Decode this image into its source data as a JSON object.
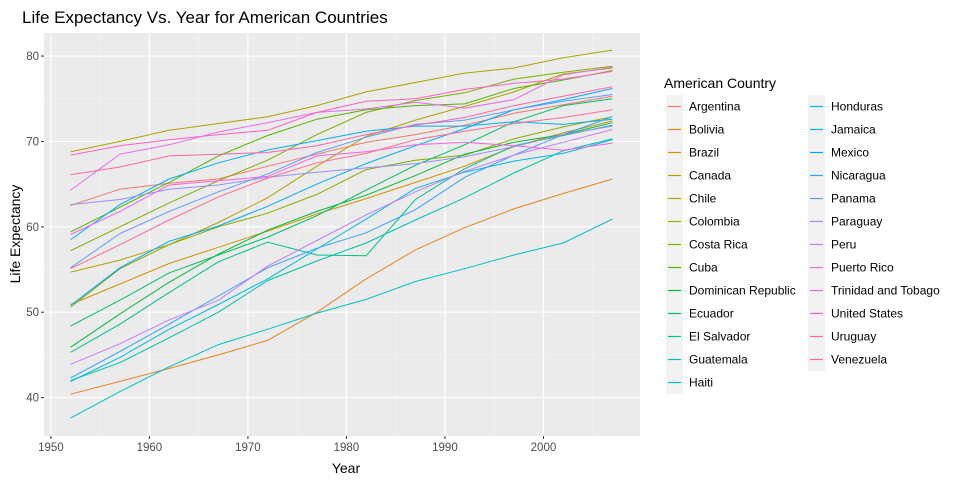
{
  "chart_data": {
    "type": "line",
    "title": "Life Expectancy Vs. Year for American Countries",
    "xlabel": "Year",
    "ylabel": "Life Expectancy",
    "xlim": [
      1949.3,
      2009.8
    ],
    "ylim": [
      35.5,
      82.7
    ],
    "xticks": [
      1950,
      1960,
      1970,
      1980,
      1990,
      2000
    ],
    "yticks": [
      40,
      50,
      60,
      70,
      80
    ],
    "grid": true,
    "legend": {
      "title": "American Country",
      "placement": "right"
    },
    "x": [
      1952,
      1957,
      1962,
      1967,
      1972,
      1977,
      1982,
      1987,
      1992,
      1997,
      2002,
      2007
    ],
    "series": [
      {
        "name": "Argentina",
        "color": "#F8766D",
        "values": [
          62.5,
          64.4,
          65.1,
          65.6,
          67.1,
          68.5,
          69.9,
          70.8,
          71.9,
          73.3,
          74.3,
          75.3
        ]
      },
      {
        "name": "Bolivia",
        "color": "#E7851E",
        "values": [
          40.4,
          41.9,
          43.4,
          45.0,
          46.7,
          50.0,
          53.9,
          57.3,
          59.9,
          62.1,
          63.9,
          65.6
        ]
      },
      {
        "name": "Brazil",
        "color": "#D09400",
        "values": [
          50.9,
          53.3,
          55.7,
          57.6,
          59.5,
          61.5,
          63.3,
          65.2,
          67.1,
          69.4,
          71.0,
          72.4
        ]
      },
      {
        "name": "Canada",
        "color": "#B2A100",
        "values": [
          68.8,
          70.0,
          71.3,
          72.1,
          72.9,
          74.2,
          75.8,
          76.9,
          78.0,
          78.6,
          79.8,
          80.7
        ]
      },
      {
        "name": "Chile",
        "color": "#B2A100",
        "values": [
          54.7,
          56.1,
          57.9,
          60.5,
          63.4,
          67.1,
          70.6,
          72.5,
          74.1,
          75.8,
          77.9,
          78.6
        ]
      },
      {
        "name": "Colombia",
        "color": "#8AAB00",
        "values": [
          50.6,
          55.1,
          57.9,
          60.0,
          61.6,
          63.8,
          66.7,
          67.8,
          68.4,
          70.3,
          71.7,
          72.9
        ]
      },
      {
        "name": "Costa Rica",
        "color": "#7CAE00",
        "values": [
          57.2,
          60.0,
          62.8,
          65.4,
          67.8,
          70.8,
          73.4,
          74.8,
          75.7,
          77.3,
          78.1,
          78.8
        ]
      },
      {
        "name": "Cuba",
        "color": "#53B400",
        "values": [
          59.4,
          62.3,
          65.2,
          68.3,
          70.7,
          72.6,
          73.7,
          74.2,
          74.4,
          76.2,
          77.2,
          78.3
        ]
      },
      {
        "name": "Dominican Republic",
        "color": "#00BA38",
        "values": [
          45.9,
          49.8,
          53.5,
          56.8,
          59.6,
          61.8,
          63.7,
          66.0,
          68.5,
          69.9,
          70.8,
          72.2
        ]
      },
      {
        "name": "Ecuador",
        "color": "#00BE67",
        "values": [
          48.4,
          51.4,
          54.6,
          56.7,
          58.8,
          61.3,
          64.3,
          67.2,
          69.6,
          72.3,
          74.2,
          75.0
        ]
      },
      {
        "name": "El Salvador",
        "color": "#00C08B",
        "values": [
          45.3,
          48.6,
          52.3,
          55.9,
          58.2,
          56.7,
          56.6,
          63.2,
          66.8,
          69.5,
          70.7,
          71.9
        ]
      },
      {
        "name": "Guatemala",
        "color": "#00C1A9",
        "values": [
          42.0,
          44.1,
          47.0,
          50.0,
          53.7,
          56.0,
          58.1,
          60.8,
          63.4,
          66.3,
          68.9,
          70.3
        ]
      },
      {
        "name": "Haiti",
        "color": "#00BFC4",
        "values": [
          37.6,
          40.7,
          43.6,
          46.2,
          48.0,
          49.9,
          51.5,
          53.6,
          55.1,
          56.7,
          58.1,
          60.9
        ]
      },
      {
        "name": "Honduras",
        "color": "#00B8E7",
        "values": [
          41.9,
          44.7,
          48.0,
          50.9,
          53.9,
          57.4,
          60.9,
          64.5,
          66.4,
          67.7,
          68.6,
          70.2
        ]
      },
      {
        "name": "Jamaica",
        "color": "#00B0F6",
        "values": [
          58.5,
          62.6,
          65.6,
          67.5,
          69.0,
          70.1,
          71.2,
          71.8,
          71.8,
          72.3,
          72.0,
          72.6
        ]
      },
      {
        "name": "Mexico",
        "color": "#00A9FF",
        "values": [
          50.8,
          55.2,
          58.3,
          60.1,
          62.4,
          65.0,
          67.4,
          69.5,
          71.5,
          73.7,
          74.9,
          76.2
        ]
      },
      {
        "name": "Nicaragua",
        "color": "#35A2FF",
        "values": [
          42.3,
          45.4,
          48.6,
          51.9,
          55.2,
          57.5,
          59.3,
          62.0,
          65.8,
          68.4,
          70.8,
          72.9
        ]
      },
      {
        "name": "Panama",
        "color": "#619CFF",
        "values": [
          55.2,
          59.2,
          61.8,
          64.1,
          66.2,
          68.7,
          70.5,
          72.0,
          72.5,
          73.7,
          74.7,
          75.5
        ]
      },
      {
        "name": "Paraguay",
        "color": "#9590FF",
        "values": [
          62.6,
          63.2,
          64.4,
          64.9,
          65.8,
          66.4,
          66.9,
          67.4,
          68.2,
          69.4,
          70.8,
          71.8
        ]
      },
      {
        "name": "Peru",
        "color": "#C77CFF",
        "values": [
          43.9,
          46.3,
          49.1,
          51.4,
          55.4,
          58.4,
          61.4,
          64.1,
          66.5,
          68.4,
          69.9,
          71.4
        ]
      },
      {
        "name": "Puerto Rico",
        "color": "#E76BF3",
        "values": [
          64.3,
          68.5,
          69.6,
          71.1,
          72.2,
          73.4,
          73.8,
          74.6,
          73.9,
          74.9,
          77.8,
          78.7
        ]
      },
      {
        "name": "Trinidad and Tobago",
        "color": "#F564E3",
        "values": [
          59.1,
          61.8,
          64.9,
          65.4,
          65.9,
          68.3,
          68.8,
          69.6,
          69.9,
          69.5,
          68.98,
          69.8
        ]
      },
      {
        "name": "United States",
        "color": "#FF61C3",
        "values": [
          68.4,
          69.5,
          70.2,
          70.8,
          71.3,
          73.4,
          74.7,
          75.0,
          76.1,
          76.8,
          77.3,
          78.2
        ]
      },
      {
        "name": "Uruguay",
        "color": "#FF66A8",
        "values": [
          66.1,
          67.0,
          68.3,
          68.5,
          68.7,
          69.5,
          70.8,
          71.9,
          72.8,
          74.2,
          75.3,
          76.4
        ]
      },
      {
        "name": "Venezuela",
        "color": "#FF6C91",
        "values": [
          55.1,
          57.9,
          60.8,
          63.5,
          65.7,
          67.5,
          68.6,
          70.2,
          71.2,
          72.1,
          72.8,
          73.7
        ]
      }
    ]
  }
}
